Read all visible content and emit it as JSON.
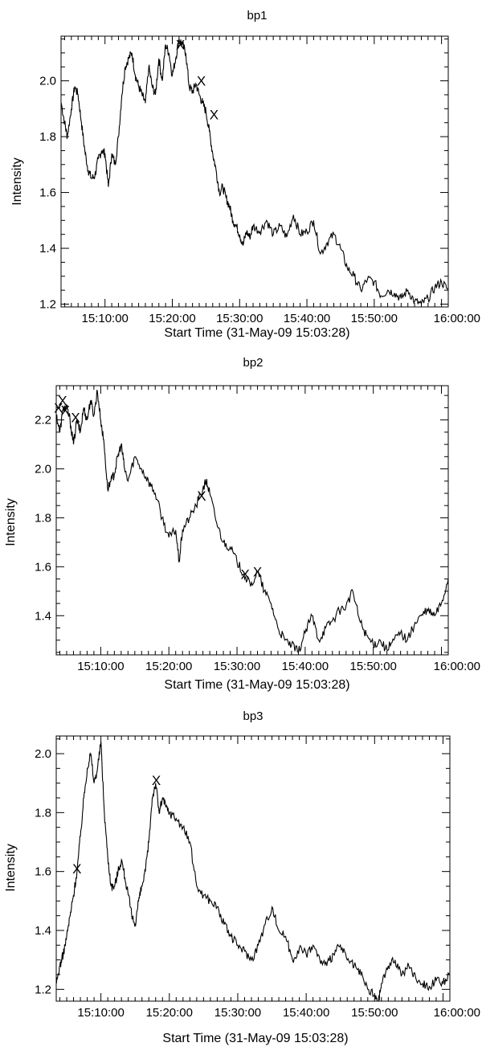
{
  "chart_data": [
    {
      "type": "line",
      "title": "bp1",
      "xlabel": "Start Time (31-May-09 15:03:28)",
      "ylabel": "Intensity",
      "x_unit": "minutes after 15:00:00",
      "xlim": [
        3.47,
        61.0
      ],
      "ylim": [
        1.19,
        2.16
      ],
      "x_ticks": [
        10,
        20,
        30,
        40,
        50,
        60
      ],
      "x_tick_labels": [
        "15:10:00",
        "15:20:00",
        "15:30:00",
        "15:40:00",
        "15:50:00",
        "16:00:00"
      ],
      "y_ticks": [
        1.2,
        1.4,
        1.6,
        1.8,
        2.0
      ],
      "y_tick_labels": [
        "1.2",
        "1.4",
        "1.6",
        "1.8",
        "2.0"
      ],
      "series": [
        {
          "x": [
            3.5,
            4.0,
            4.4,
            5.0,
            5.5,
            6.0,
            6.5,
            7.0,
            7.5,
            8.0,
            8.5,
            9.0,
            9.5,
            10.0,
            10.5,
            11.0,
            11.5,
            12.0,
            12.5,
            13.0,
            13.5,
            14.0,
            14.5,
            15.0,
            15.5,
            16.0,
            16.5,
            17.0,
            17.5,
            18.0,
            18.5,
            19.0,
            19.5,
            20.0,
            20.5,
            21.0,
            21.5,
            22.0,
            22.5,
            23.0,
            23.5,
            24.0,
            24.5,
            25.0,
            25.5,
            26.0,
            26.5,
            27.0,
            27.5,
            28.0,
            28.5,
            29.0,
            29.5,
            30.0,
            30.5,
            31.0,
            31.5,
            32.0,
            33.0,
            34.0,
            35.0,
            36.0,
            37.0,
            38.0,
            39.0,
            40.0,
            41.0,
            42.0,
            43.0,
            44.0,
            45.0,
            46.0,
            47.0,
            48.0,
            49.0,
            50.0,
            51.0,
            52.0,
            53.0,
            54.0,
            55.0,
            56.0,
            57.0,
            58.0,
            59.0,
            60.0,
            61.0
          ],
          "y": [
            1.92,
            1.85,
            1.8,
            1.9,
            1.98,
            1.95,
            1.85,
            1.75,
            1.68,
            1.65,
            1.66,
            1.72,
            1.75,
            1.74,
            1.62,
            1.74,
            1.7,
            1.8,
            1.95,
            2.05,
            2.08,
            2.1,
            2.02,
            1.98,
            1.95,
            1.92,
            2.05,
            1.98,
            1.95,
            2.08,
            2.0,
            2.13,
            2.1,
            2.02,
            2.08,
            2.15,
            2.13,
            2.1,
            1.98,
            1.96,
            1.99,
            1.95,
            1.92,
            1.89,
            1.82,
            1.74,
            1.68,
            1.6,
            1.62,
            1.58,
            1.55,
            1.5,
            1.48,
            1.45,
            1.41,
            1.46,
            1.44,
            1.48,
            1.46,
            1.5,
            1.45,
            1.48,
            1.44,
            1.52,
            1.45,
            1.46,
            1.5,
            1.38,
            1.42,
            1.45,
            1.4,
            1.33,
            1.3,
            1.25,
            1.29,
            1.28,
            1.23,
            1.25,
            1.24,
            1.22,
            1.25,
            1.21,
            1.2,
            1.22,
            1.26,
            1.28,
            1.25
          ]
        }
      ],
      "markers": [
        {
          "label": "X",
          "x": 21.2,
          "y": 2.13
        },
        {
          "label": "X",
          "x": 24.3,
          "y": 2.0
        },
        {
          "label": "X",
          "x": 26.2,
          "y": 1.88
        }
      ]
    },
    {
      "type": "line",
      "title": "bp2",
      "xlabel": "Start Time (31-May-09 15:03:28)",
      "ylabel": "Intensity",
      "x_unit": "minutes after 15:00:00",
      "xlim": [
        3.47,
        61.0
      ],
      "ylim": [
        1.24,
        2.34
      ],
      "x_ticks": [
        10,
        20,
        30,
        40,
        50,
        60
      ],
      "x_tick_labels": [
        "15:10:00",
        "15:20:00",
        "15:30:00",
        "15:40:00",
        "15:50:00",
        "16:00:00"
      ],
      "y_ticks": [
        1.4,
        1.6,
        1.8,
        2.0,
        2.2
      ],
      "y_tick_labels": [
        "1.4",
        "1.6",
        "1.8",
        "2.0",
        "2.2"
      ],
      "series": [
        {
          "x": [
            3.5,
            4.0,
            4.5,
            5.0,
            5.5,
            6.0,
            6.5,
            7.0,
            7.5,
            8.0,
            8.5,
            9.0,
            9.5,
            10.0,
            10.5,
            11.0,
            11.5,
            12.0,
            12.5,
            13.0,
            13.5,
            14.0,
            15.0,
            16.0,
            17.0,
            18.0,
            19.0,
            20.0,
            21.0,
            21.5,
            22.0,
            23.0,
            24.0,
            25.0,
            25.5,
            26.0,
            27.0,
            28.0,
            29.0,
            30.0,
            31.0,
            32.0,
            33.0,
            34.0,
            35.0,
            36.0,
            37.0,
            38.0,
            39.0,
            40.0,
            41.0,
            42.0,
            43.0,
            44.0,
            45.0,
            46.0,
            47.0,
            48.0,
            49.0,
            50.0,
            51.0,
            52.0,
            53.0,
            54.0,
            55.0,
            56.0,
            57.0,
            58.0,
            59.0,
            60.0,
            61.0
          ],
          "y": [
            2.22,
            2.15,
            2.25,
            2.25,
            2.2,
            2.1,
            2.2,
            2.15,
            2.25,
            2.2,
            2.28,
            2.22,
            2.32,
            2.2,
            2.1,
            1.92,
            1.95,
            1.98,
            2.05,
            2.1,
            2.0,
            1.95,
            2.05,
            2.0,
            1.95,
            1.9,
            1.8,
            1.72,
            1.75,
            1.62,
            1.75,
            1.8,
            1.85,
            1.92,
            1.95,
            1.9,
            1.78,
            1.7,
            1.68,
            1.62,
            1.57,
            1.52,
            1.58,
            1.5,
            1.45,
            1.35,
            1.3,
            1.28,
            1.25,
            1.33,
            1.4,
            1.3,
            1.35,
            1.38,
            1.42,
            1.44,
            1.5,
            1.38,
            1.32,
            1.28,
            1.3,
            1.26,
            1.3,
            1.33,
            1.3,
            1.36,
            1.4,
            1.42,
            1.4,
            1.45,
            1.55
          ]
        }
      ],
      "markers": [
        {
          "label": "X",
          "x": 3.8,
          "y": 2.25
        },
        {
          "label": "X",
          "x": 4.4,
          "y": 2.28
        },
        {
          "label": "X",
          "x": 4.8,
          "y": 2.24
        },
        {
          "label": "X",
          "x": 6.3,
          "y": 2.21
        },
        {
          "label": "X",
          "x": 24.8,
          "y": 1.89
        },
        {
          "label": "X",
          "x": 31.2,
          "y": 1.57
        },
        {
          "label": "X",
          "x": 33.0,
          "y": 1.58
        }
      ]
    },
    {
      "type": "line",
      "title": "bp3",
      "xlabel": "Start Time (31-May-09 15:03:28)",
      "ylabel": "Intensity",
      "x_unit": "minutes after 15:00:00",
      "xlim": [
        3.47,
        61.0
      ],
      "ylim": [
        1.16,
        2.06
      ],
      "x_ticks": [
        10,
        20,
        30,
        40,
        50,
        60
      ],
      "x_tick_labels": [
        "15:10:00",
        "15:20:00",
        "15:30:00",
        "15:40:00",
        "15:50:00",
        "16:00:00"
      ],
      "y_ticks": [
        1.2,
        1.4,
        1.6,
        1.8,
        2.0
      ],
      "y_tick_labels": [
        "1.2",
        "1.4",
        "1.6",
        "1.8",
        "2.0"
      ],
      "series": [
        {
          "x": [
            3.5,
            4.0,
            4.5,
            5.0,
            5.5,
            6.0,
            6.5,
            7.0,
            7.5,
            8.0,
            8.5,
            9.0,
            9.5,
            10.0,
            10.5,
            11.0,
            11.5,
            12.0,
            12.5,
            13.0,
            13.5,
            14.0,
            14.5,
            15.0,
            15.5,
            16.0,
            16.5,
            17.0,
            17.5,
            18.0,
            18.5,
            19.0,
            19.5,
            20.0,
            21.0,
            22.0,
            23.0,
            24.0,
            25.0,
            26.0,
            27.0,
            28.0,
            29.0,
            30.0,
            31.0,
            32.0,
            33.0,
            34.0,
            35.0,
            36.0,
            37.0,
            38.0,
            39.0,
            40.0,
            41.0,
            42.0,
            43.0,
            44.0,
            45.0,
            46.0,
            47.0,
            48.0,
            49.0,
            50.0,
            50.5,
            51.0,
            52.0,
            53.0,
            54.0,
            55.0,
            56.0,
            57.0,
            58.0,
            59.0,
            60.0,
            61.0
          ],
          "y": [
            1.22,
            1.28,
            1.32,
            1.38,
            1.45,
            1.52,
            1.6,
            1.72,
            1.85,
            1.95,
            2.0,
            1.9,
            1.95,
            2.04,
            1.8,
            1.65,
            1.55,
            1.55,
            1.6,
            1.64,
            1.58,
            1.52,
            1.45,
            1.42,
            1.5,
            1.55,
            1.6,
            1.7,
            1.85,
            1.9,
            1.8,
            1.85,
            1.82,
            1.8,
            1.78,
            1.75,
            1.7,
            1.55,
            1.52,
            1.5,
            1.48,
            1.42,
            1.38,
            1.35,
            1.33,
            1.3,
            1.35,
            1.42,
            1.48,
            1.4,
            1.38,
            1.3,
            1.34,
            1.32,
            1.35,
            1.3,
            1.28,
            1.32,
            1.35,
            1.3,
            1.28,
            1.25,
            1.2,
            1.18,
            1.15,
            1.22,
            1.28,
            1.3,
            1.25,
            1.28,
            1.24,
            1.22,
            1.21,
            1.23,
            1.22,
            1.25
          ]
        }
      ],
      "markers": [
        {
          "label": "X",
          "x": 6.5,
          "y": 1.61
        },
        {
          "label": "X",
          "x": 18.1,
          "y": 1.91
        }
      ]
    }
  ]
}
